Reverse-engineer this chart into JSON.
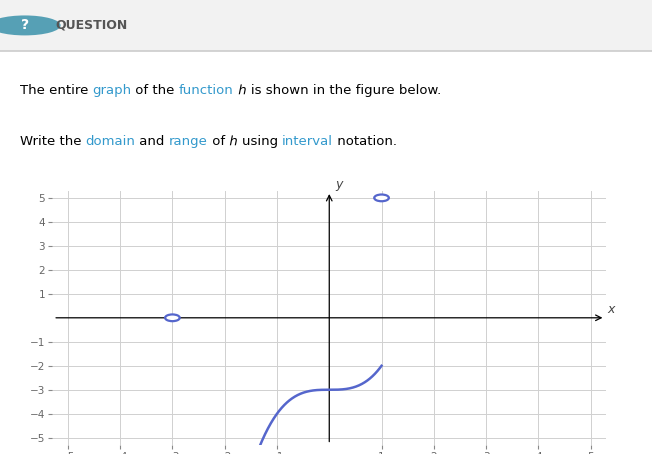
{
  "x_min": -5,
  "x_max": 5,
  "y_min": -5,
  "y_max": 5,
  "curve_color": "#5566cc",
  "curve_linewidth": 1.8,
  "open_circles": [
    [
      -3,
      0
    ],
    [
      1,
      5
    ]
  ],
  "domain_start": -3,
  "domain_end": 1,
  "grid_color": "#d0d0d0",
  "background_color": "#ffffff",
  "link_color": "#3399cc",
  "fig_width": 6.52,
  "fig_height": 4.54,
  "line1": [
    [
      "The entire ",
      "black",
      false
    ],
    [
      "graph",
      "#3399cc",
      true
    ],
    [
      " of the ",
      "black",
      false
    ],
    [
      "function",
      "#3399cc",
      true
    ],
    [
      " ℎ is shown in the figure below.",
      "black",
      false
    ]
  ],
  "line2": [
    [
      "Write the ",
      "black",
      false
    ],
    [
      "domain",
      "#3399cc",
      true
    ],
    [
      " and ",
      "black",
      false
    ],
    [
      "range",
      "#3399cc",
      true
    ],
    [
      " of ℎ using ",
      "black",
      false
    ],
    [
      "interval",
      "#3399cc",
      true
    ],
    [
      " notation.",
      "black",
      false
    ]
  ]
}
